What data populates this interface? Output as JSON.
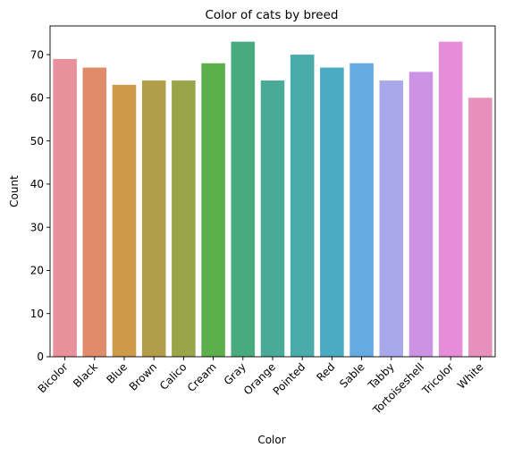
{
  "chart_data": {
    "type": "bar",
    "title": "Color of cats by breed",
    "xlabel": "Color",
    "ylabel": "Count",
    "categories": [
      "Bicolor",
      "Black",
      "Blue",
      "Brown",
      "Calico",
      "Cream",
      "Gray",
      "Orange",
      "Pointed",
      "Red",
      "Sable",
      "Tabby",
      "Tortoiseshell",
      "Tricolor",
      "White"
    ],
    "values": [
      69,
      67,
      63,
      64,
      64,
      68,
      73,
      64,
      70,
      67,
      68,
      64,
      66,
      73,
      60
    ],
    "colors": [
      "#e8909c",
      "#e08c6a",
      "#cc9a48",
      "#b29e48",
      "#9aa448",
      "#5cb04c",
      "#48aa7e",
      "#4aaa98",
      "#4aacaa",
      "#4aaac0",
      "#66aae2",
      "#a8a8ea",
      "#cc92e4",
      "#e68cd8",
      "#e890bc"
    ],
    "ylim": [
      0,
      76.65
    ],
    "yticks": [
      0,
      10,
      20,
      30,
      40,
      50,
      60,
      70
    ],
    "grid": false,
    "legend": "none"
  }
}
